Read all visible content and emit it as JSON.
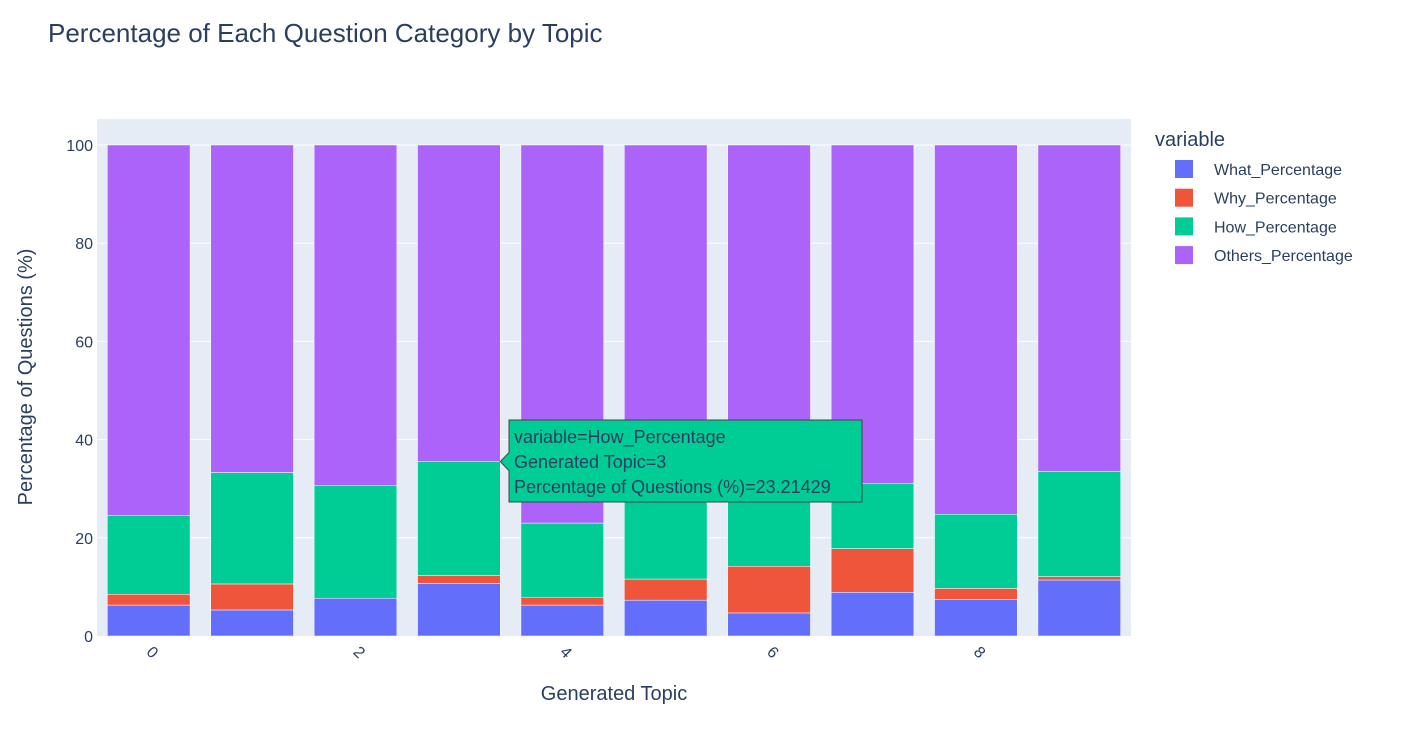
{
  "chart_data": {
    "type": "bar",
    "barmode": "stack",
    "title": "Percentage of Each Question Category by Topic",
    "xlabel": "Generated Topic",
    "ylabel": "Percentage of Questions (%)",
    "categories": [
      0,
      1,
      2,
      3,
      4,
      5,
      6,
      7,
      8,
      9
    ],
    "x_tick_labels": [
      "0",
      "2",
      "4",
      "6",
      "8"
    ],
    "x_tick_values": [
      0,
      2,
      4,
      6,
      8
    ],
    "y_ticks": [
      0,
      20,
      40,
      60,
      80,
      100
    ],
    "ylim": [
      0,
      105
    ],
    "grid": true,
    "legend": {
      "title": "variable",
      "placement": "top-right"
    },
    "series": [
      {
        "name": "What_Percentage",
        "color": "#636efa",
        "values": [
          6.3,
          5.3,
          7.7,
          10.7,
          6.3,
          7.3,
          4.7,
          8.9,
          7.4,
          11.4
        ]
      },
      {
        "name": "Why_Percentage",
        "color": "#ef553b",
        "values": [
          2.2,
          5.3,
          0.0,
          1.6,
          1.6,
          4.3,
          9.5,
          8.9,
          2.3,
          0.7
        ]
      },
      {
        "name": "How_Percentage",
        "color": "#00cc96",
        "values": [
          16.0,
          22.7,
          23.0,
          23.21429,
          15.1,
          19.3,
          17.0,
          13.3,
          15.1,
          21.4
        ]
      },
      {
        "name": "Others_Percentage",
        "color": "#ab63fa",
        "values": [
          75.5,
          66.7,
          69.3,
          64.48571,
          77.0,
          69.1,
          68.8,
          68.9,
          75.2,
          66.5
        ]
      }
    ],
    "tooltip": {
      "lines": [
        "variable=How_Percentage",
        "Generated Topic=3",
        "Percentage of Questions (%)=23.21429"
      ],
      "series_index": 2,
      "category_index": 3,
      "color": "#00cc96"
    }
  }
}
